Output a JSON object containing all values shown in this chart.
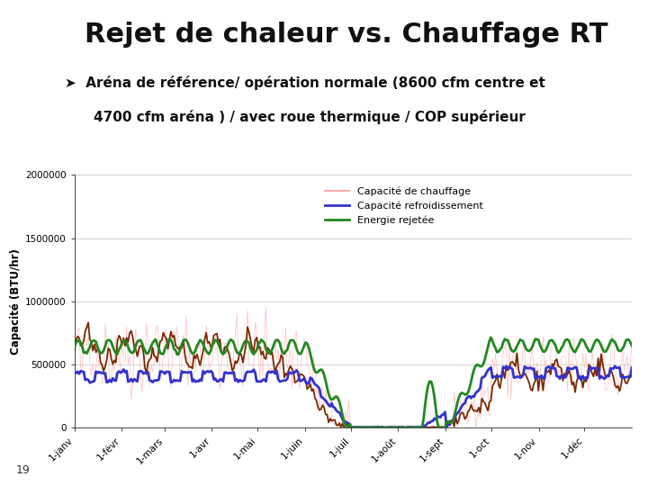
{
  "title": "Rejet de chaleur vs. Chauffage RT",
  "subtitle_line1": "Aréna de référence/ opération normale (8600 cfm centre et",
  "subtitle_line2": "4700 cfm aréna ) / avec roue thermique / COP supérieur",
  "bullet": "➤",
  "ylabel": "Capacité (BTU/hr)",
  "yticks": [
    0,
    500000,
    1000000,
    1500000,
    2000000
  ],
  "ytick_labels": [
    "0",
    "500000",
    "1000000",
    "1500000",
    "2000000"
  ],
  "xtick_labels": [
    "1-janv",
    "1-févr",
    "1-mars",
    "1-avr",
    "1-mai",
    "1-juin",
    "1-juil",
    "1-août",
    "1-sept",
    "1-oct",
    "1-nov",
    "1-déc"
  ],
  "legend": [
    {
      "label": "Capacité de chauffage",
      "color": "#ffaaaa",
      "lw": 1.2
    },
    {
      "label": "Capacité refroidissement",
      "color": "#3333cc",
      "lw": 2.0
    },
    {
      "label": "Energie rejetée",
      "color": "#228822",
      "lw": 2.0
    }
  ],
  "bg_color": "#ffffff",
  "plot_bg": "#ffffff",
  "grid_color": "#cccccc",
  "page_number": "19",
  "chauffage_thick_color": "#7a2800",
  "chauffage_thin_color": "#ffaaaa",
  "title_fontsize": 22,
  "subtitle_fontsize": 11
}
